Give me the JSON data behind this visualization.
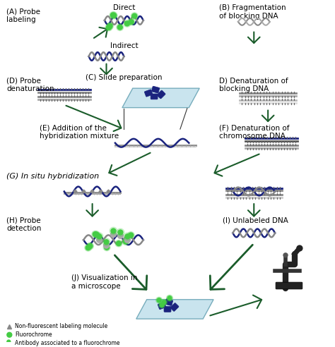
{
  "bg_color": "#ffffff",
  "dark_green": "#1a5c2a",
  "dna_blue": "#1a237e",
  "dna_gray": "#888888",
  "slide_blue": "#b3d9e8",
  "slide_border": "#4a90a4",
  "fluoro_green": "#44cc44",
  "text_color": "#000000",
  "label_fontsize": 7.5,
  "labels": {
    "A": "(A) Probe\nlabeling",
    "B": "(B) Fragmentation\nof blocking DNA",
    "C": "(C) Slide preparation",
    "D_left": "(D) Probe\ndenaturation",
    "D_right": "D) Denaturation of\nblocking DNA",
    "E": "(E) Addition of the\nhybridization mixture",
    "F": "(F) Denaturation of\nchromosome DNA",
    "G": "(G) In situ hybridization",
    "H": "(H) Probe\ndetection",
    "I": "(I) Unlabeled DNA",
    "J": "(J) Visualization in\na microscope"
  },
  "legend": [
    "Non-fluorescent labeling molecule",
    "Fluorochrome",
    "Antibody associated to a fluorochrome"
  ],
  "direct_label": "Direct",
  "indirect_label": "Indirect"
}
